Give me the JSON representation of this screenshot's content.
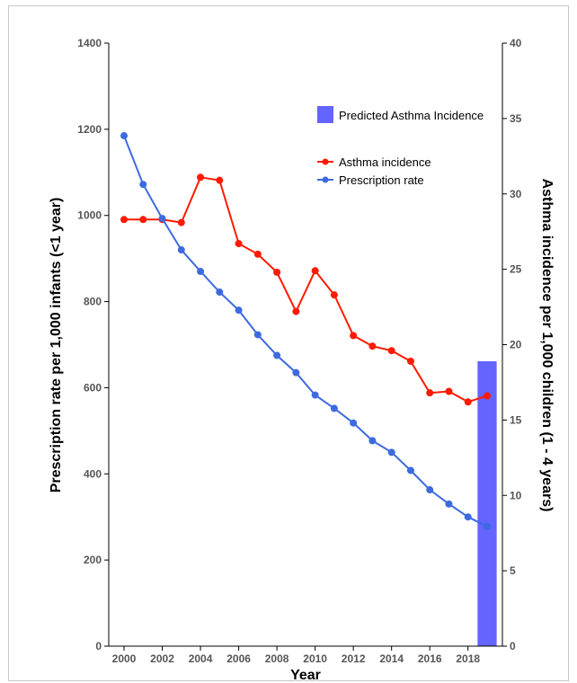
{
  "chart_data": {
    "type": "line",
    "x_label": "Year",
    "y_left_label": "Prescription rate per 1,000 infants (<1 year)",
    "y_right_label": "Asthma incidence per 1,000 children (1 - 4 years)",
    "y_left_range": [
      0,
      1400
    ],
    "y_left_ticks": [
      0,
      200,
      400,
      600,
      800,
      1000,
      1200,
      1400
    ],
    "y_right_range": [
      0,
      40
    ],
    "y_right_ticks": [
      0,
      5,
      10,
      15,
      20,
      25,
      30,
      35,
      40
    ],
    "x_range": [
      1999.2,
      2019.8
    ],
    "x_ticks": [
      2000,
      2002,
      2004,
      2006,
      2008,
      2010,
      2012,
      2014,
      2016,
      2018
    ],
    "grid": false,
    "legend_position": "top-right",
    "series": [
      {
        "name": "Asthma incidence",
        "axis": "right",
        "color": "#ff1a00",
        "x": [
          2000,
          2001,
          2002,
          2003,
          2004,
          2005,
          2006,
          2007,
          2008,
          2009,
          2010,
          2011,
          2012,
          2013,
          2014,
          2015,
          2016,
          2017,
          2018,
          2019
        ],
        "y": [
          28.3,
          28.3,
          28.3,
          28.1,
          31.1,
          30.9,
          26.7,
          26.0,
          24.8,
          22.2,
          24.9,
          23.3,
          20.6,
          19.9,
          19.6,
          18.9,
          16.8,
          16.9,
          16.2,
          16.6
        ]
      },
      {
        "name": "Prescription rate",
        "axis": "left",
        "color": "#3d6ae0",
        "x": [
          2000,
          2001,
          2002,
          2003,
          2004,
          2005,
          2006,
          2007,
          2008,
          2009,
          2010,
          2011,
          2012,
          2013,
          2014,
          2015,
          2016,
          2017,
          2018,
          2019
        ],
        "y": [
          1185,
          1072,
          993,
          920,
          870,
          822,
          780,
          723,
          675,
          635,
          583,
          552,
          518,
          477,
          450,
          408,
          363,
          330,
          300,
          278
        ]
      }
    ],
    "bars": [
      {
        "name": "Predicted Asthma Incidence",
        "axis": "right",
        "color": "#6464ff",
        "x": 2019,
        "value": 18.9
      }
    ]
  }
}
